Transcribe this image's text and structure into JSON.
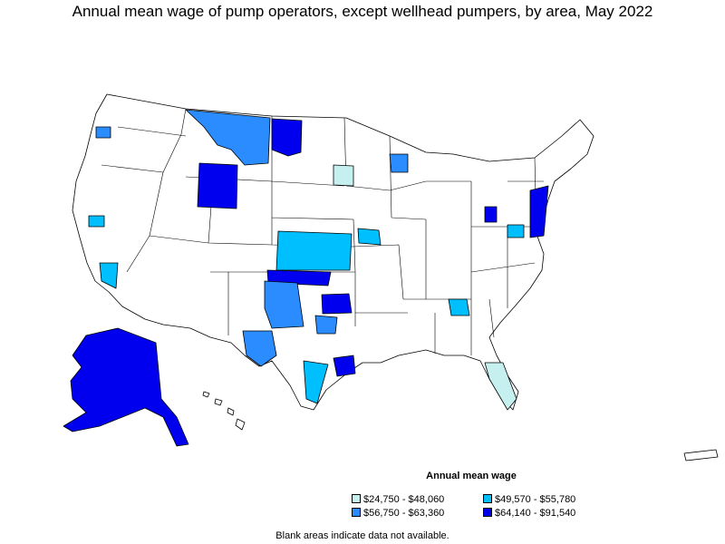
{
  "title": "Annual mean wage of pump operators, except wellhead pumpers, by area, May 2022",
  "legend": {
    "title": "Annual mean wage",
    "items": [
      {
        "label": "$24,750 - $48,060",
        "color": "#c6f0f0"
      },
      {
        "label": "$49,570 - $55,780",
        "color": "#00bfff"
      },
      {
        "label": "$56,750 - $63,360",
        "color": "#2b8cff"
      },
      {
        "label": "$64,140 - $91,540",
        "color": "#0000ee"
      }
    ]
  },
  "note": "Blank areas indicate data not available.",
  "colors": {
    "background": "#ffffff",
    "border": "#000000",
    "no_data": "#ffffff"
  }
}
